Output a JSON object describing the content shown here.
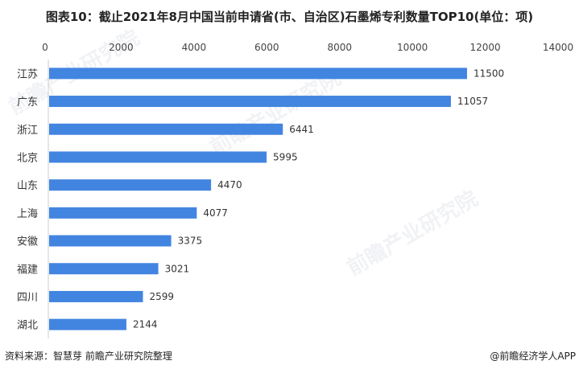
{
  "chart_data": {
    "type": "bar",
    "orientation": "horizontal",
    "title": "图表10：截止2021年8月中国当前申请省(市、自治区)石墨烯专利数量TOP10(单位：项)",
    "categories": [
      "江苏",
      "广东",
      "浙江",
      "北京",
      "山东",
      "上海",
      "安徽",
      "福建",
      "四川",
      "湖北"
    ],
    "values": [
      11500,
      11057,
      6441,
      5995,
      4470,
      4077,
      3375,
      3021,
      2599,
      2144
    ],
    "xlim": [
      0,
      14000
    ],
    "xticks": [
      "0",
      "2000",
      "4000",
      "6000",
      "8000",
      "10000",
      "12000",
      "14000"
    ],
    "axis_position": "top",
    "grid": false,
    "bar_color": "#4285e0",
    "xlabel": "",
    "ylabel": ""
  },
  "footer": {
    "source": "资料来源：智慧芽 前瞻产业研究院整理",
    "credit": "@前瞻经济学人APP"
  },
  "watermark": "前瞻产业研究院"
}
